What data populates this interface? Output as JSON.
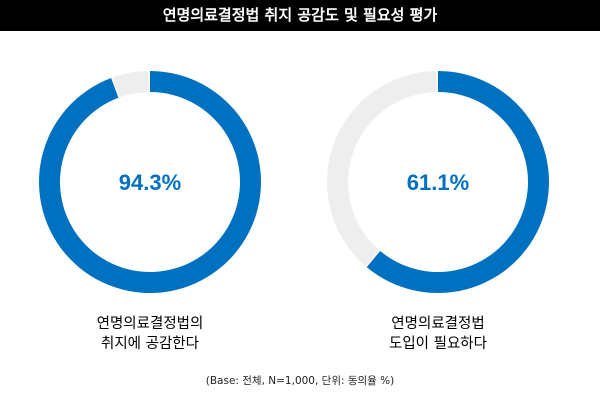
{
  "title": "연명의료결정법 취지 공감도 및 필요성 평가",
  "chart_data": [
    {
      "type": "pie",
      "donut": true,
      "value": 94.3,
      "value_label": "94.3%",
      "caption_lines": [
        "연명의료결정법의",
        "취지에 공감한다"
      ]
    },
    {
      "type": "pie",
      "donut": true,
      "value": 61.1,
      "value_label": "61.1%",
      "caption_lines": [
        "연명의료결정법",
        "도입이 필요하다"
      ]
    }
  ],
  "footnote": "(Base: 전체, N=1,000, 단위: 동의율 %)",
  "colors": {
    "accent": "#0070C0",
    "remainder": "#EEEEEE",
    "title_bg": "#000000",
    "title_text": "#FFFFFF"
  }
}
